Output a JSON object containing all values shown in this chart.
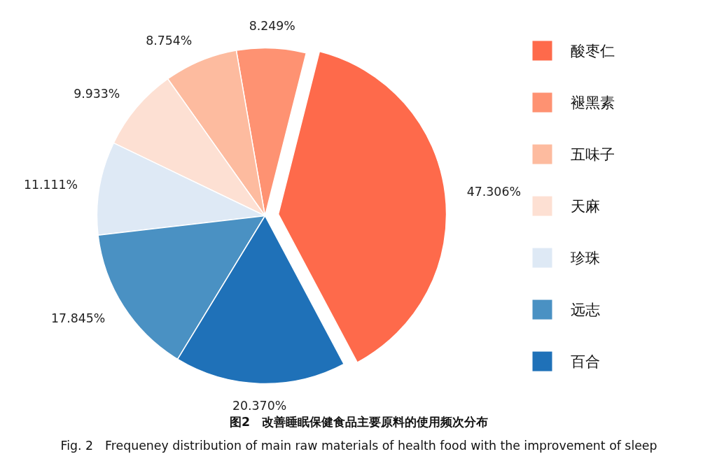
{
  "chart_data": {
    "type": "pie",
    "title": "图2　改善睡眠保健食品主要原料的使用频次分布",
    "categories": [
      "酸枣仁",
      "褪黑素",
      "五味子",
      "天麻",
      "珍珠",
      "远志",
      "百合"
    ],
    "values": [
      47.306,
      8.249,
      8.754,
      9.933,
      11.111,
      17.845,
      20.37
    ],
    "colors": [
      "#fe6a4b",
      "#fe9272",
      "#fdbb9f",
      "#fde0d3",
      "#dee9f5",
      "#4a91c3",
      "#1f71b8"
    ],
    "value_labels": [
      "47.306%",
      "8.249%",
      "8.754%",
      "9.933%",
      "11.111%",
      "17.845%",
      "20.370%"
    ],
    "legend": "right",
    "annotations": [
      "Fig. 2　Frequeney distribution of main raw materials of health food with the improvement of sleep"
    ]
  }
}
